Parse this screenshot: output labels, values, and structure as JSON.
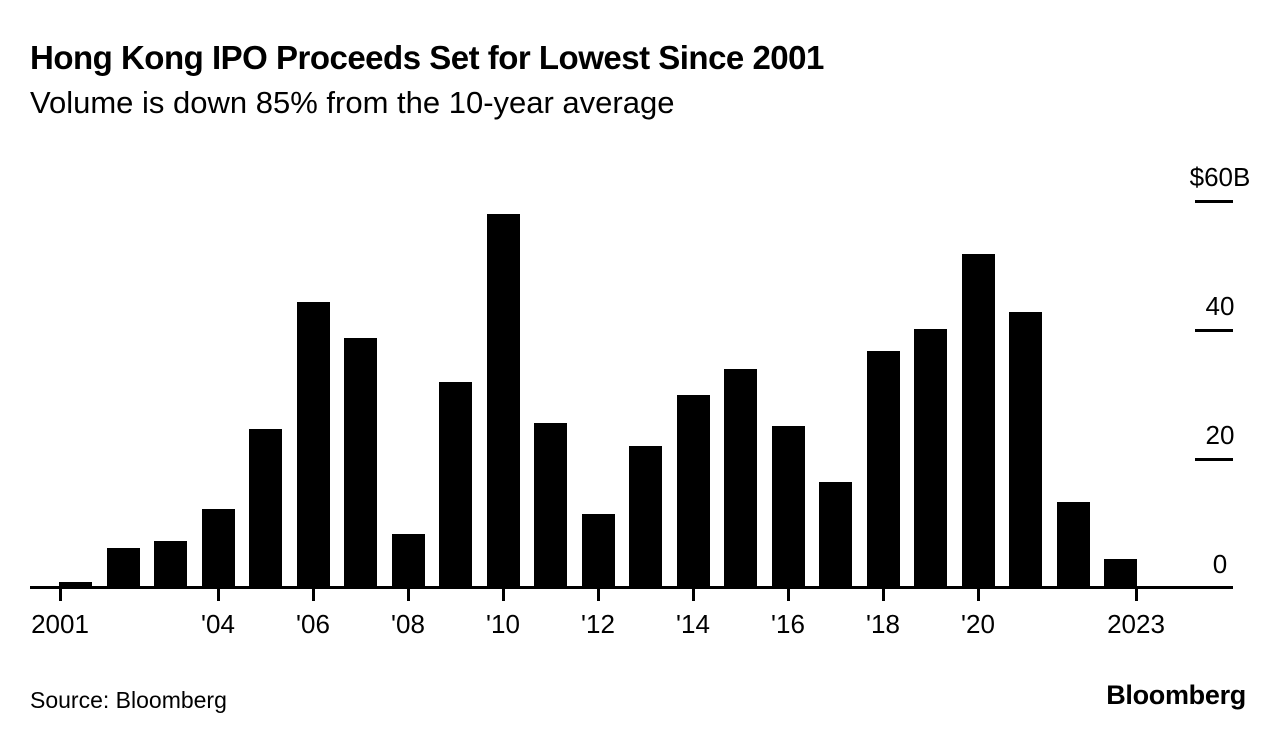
{
  "chart_data": {
    "type": "bar",
    "title": "Hong Kong IPO Proceeds Set for Lowest Since 2001",
    "subtitle": "Volume is down 85% from the 10-year average",
    "years": [
      2001,
      2002,
      2003,
      2004,
      2005,
      2006,
      2007,
      2008,
      2009,
      2010,
      2011,
      2012,
      2013,
      2014,
      2015,
      2016,
      2017,
      2018,
      2019,
      2020,
      2021,
      2022,
      2023
    ],
    "values": [
      1.0,
      6.2,
      7.3,
      12.2,
      24.7,
      44.3,
      38.8,
      8.4,
      31.9,
      58.0,
      25.6,
      11.5,
      22.0,
      29.9,
      34.0,
      25.1,
      16.4,
      36.7,
      40.2,
      51.8,
      42.8,
      13.3,
      4.5
    ],
    "x_ticks": [
      {
        "label": "2001",
        "year": 2001,
        "anchor": "start"
      },
      {
        "label": "'04",
        "year": 2004,
        "anchor": "mid"
      },
      {
        "label": "'06",
        "year": 2006,
        "anchor": "mid"
      },
      {
        "label": "'08",
        "year": 2008,
        "anchor": "mid"
      },
      {
        "label": "'10",
        "year": 2010,
        "anchor": "mid"
      },
      {
        "label": "'12",
        "year": 2012,
        "anchor": "mid"
      },
      {
        "label": "'14",
        "year": 2014,
        "anchor": "mid"
      },
      {
        "label": "'16",
        "year": 2016,
        "anchor": "mid"
      },
      {
        "label": "'18",
        "year": 2018,
        "anchor": "mid"
      },
      {
        "label": "'20",
        "year": 2020,
        "anchor": "mid"
      },
      {
        "label": "2023",
        "year": 2023,
        "anchor": "end"
      }
    ],
    "y_axis": {
      "side": "right",
      "unit": "$B",
      "ticks": [
        {
          "label": "0",
          "value": 0,
          "line": false
        },
        {
          "label": "20",
          "value": 20,
          "line": true
        },
        {
          "label": "40",
          "value": 40,
          "line": true
        },
        {
          "label": "$60B",
          "value": 60,
          "line": true
        }
      ]
    },
    "ylim": [
      0,
      62
    ],
    "grid": false,
    "legend": "none",
    "bar_color": "#000000",
    "background_color": "#ffffff",
    "text_color": "#000000"
  },
  "footer": {
    "source": "Source: Bloomberg",
    "brand": "Bloomberg"
  }
}
